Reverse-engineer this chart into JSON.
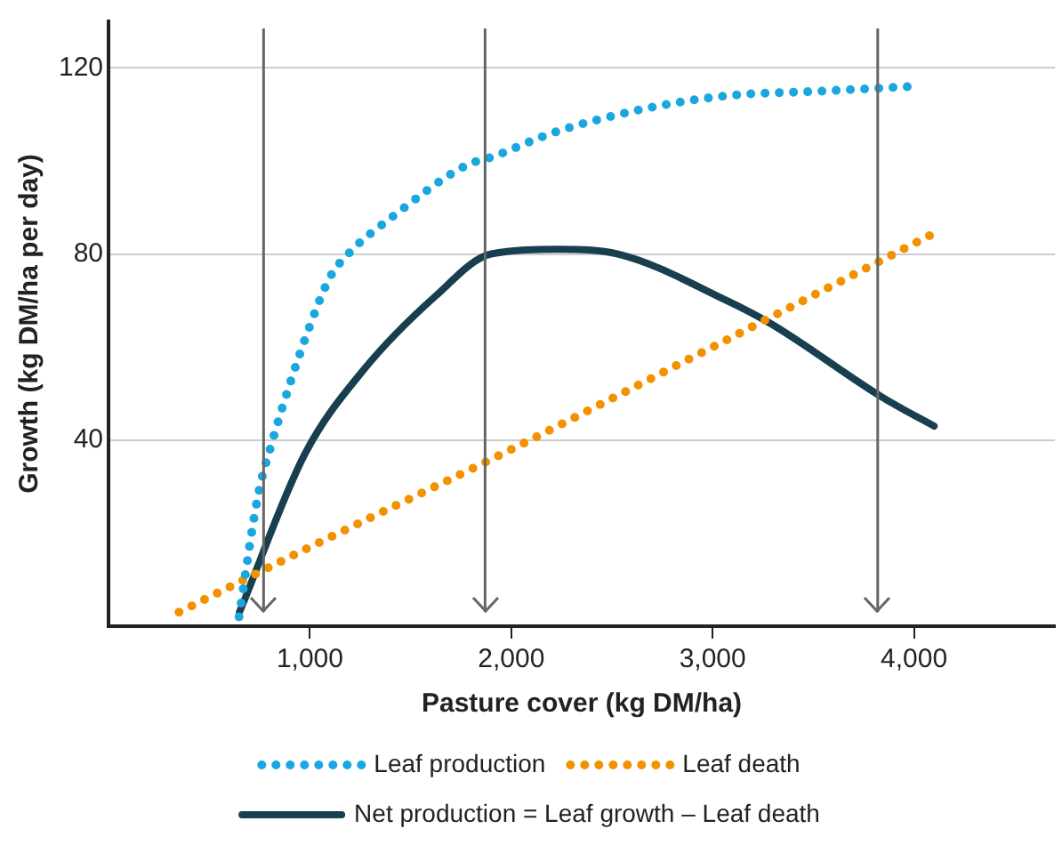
{
  "chart_data": {
    "type": "line",
    "xlabel": "Pasture cover (kg DM/ha)",
    "ylabel": "Growth (kg DM/ha per day)",
    "xlim": [
      0,
      4700
    ],
    "xticks": [
      {
        "value": 1000,
        "label": "1,000"
      },
      {
        "value": 2000,
        "label": "2,000"
      },
      {
        "value": 3000,
        "label": "3,000"
      },
      {
        "value": 4000,
        "label": "4,000"
      }
    ],
    "ylim": [
      0,
      130
    ],
    "yticks": [
      40,
      80,
      120
    ],
    "grid": "y",
    "legend": "bottom",
    "ref_lines": [
      {
        "axis": "x",
        "value": 770,
        "color": "#666666"
      },
      {
        "axis": "x",
        "value": 1870,
        "color": "#666666"
      },
      {
        "axis": "x",
        "value": 3820,
        "color": "#666666"
      }
    ],
    "series": [
      {
        "name": "Leaf production",
        "color": "#1aa7e0",
        "line_style": "dotted",
        "x": [
          648,
          742,
          815,
          900,
          995,
          1100,
          1190,
          1410,
          1775,
          1915,
          2205,
          2640,
          3070,
          3540,
          3990
        ],
        "values": [
          2,
          28,
          40,
          52,
          64,
          75,
          80,
          88,
          99,
          101,
          106,
          111,
          114,
          115,
          116
        ]
      },
      {
        "name": "Leaf death",
        "color": "#f39200",
        "line_style": "dotted",
        "x": [
          350,
          1000,
          2000,
          3000,
          4080
        ],
        "values": [
          3,
          17,
          38,
          60,
          84
        ]
      },
      {
        "name": "Net production = Leaf growth – Leaf death",
        "color": "#173f4f",
        "line_style": "solid",
        "x": [
          650,
          975,
          1265,
          1625,
          1900,
          2240,
          2530,
          3070,
          3290,
          3850,
          4100
        ],
        "values": [
          3,
          37,
          55,
          71,
          80,
          81,
          80,
          70,
          65,
          49,
          43
        ]
      }
    ]
  }
}
